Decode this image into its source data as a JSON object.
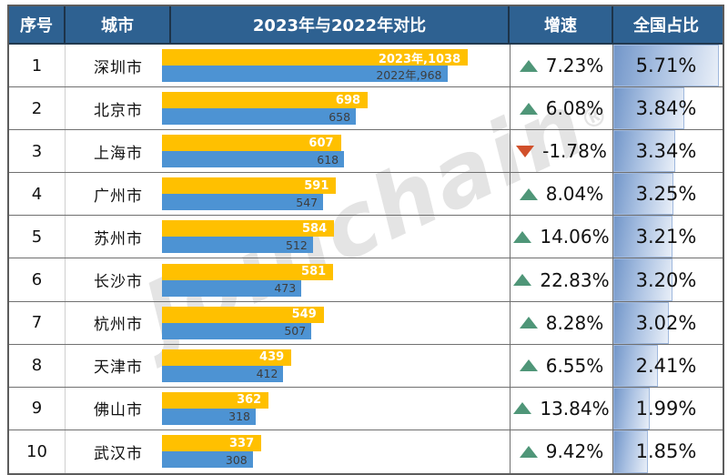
{
  "watermark": {
    "text": "Joinchain",
    "reg": "®"
  },
  "header": {
    "col_index": "序号",
    "col_city": "城市",
    "col_compare": "2023年与2022年对比",
    "col_growth": "增速",
    "col_share": "全国占比"
  },
  "colors": {
    "header_bg": "#2E6191",
    "bar_2023": "#FFC000",
    "bar_2022": "#4D93D3",
    "trend_up": "#4F9678",
    "trend_down": "#D1502B",
    "share_bar_start": "#7296c9",
    "share_bar_end": "#e9eff8"
  },
  "rows": [
    {
      "rank": "1",
      "city": "深圳市",
      "v2023": 1038,
      "v2022": 968,
      "label2023": "2023年,1038",
      "label2022": "2022年,968",
      "growth": "7.23%",
      "trend": "up",
      "share": "5.71%",
      "share_pct": 5.71
    },
    {
      "rank": "2",
      "city": "北京市",
      "v2023": 698,
      "v2022": 658,
      "label2023": "698",
      "label2022": "658",
      "growth": "6.08%",
      "trend": "up",
      "share": "3.84%",
      "share_pct": 3.84
    },
    {
      "rank": "3",
      "city": "上海市",
      "v2023": 607,
      "v2022": 618,
      "label2023": "607",
      "label2022": "618",
      "growth": "-1.78%",
      "trend": "down",
      "share": "3.34%",
      "share_pct": 3.34
    },
    {
      "rank": "4",
      "city": "广州市",
      "v2023": 591,
      "v2022": 547,
      "label2023": "591",
      "label2022": "547",
      "growth": "8.04%",
      "trend": "up",
      "share": "3.25%",
      "share_pct": 3.25
    },
    {
      "rank": "5",
      "city": "苏州市",
      "v2023": 584,
      "v2022": 512,
      "label2023": "584",
      "label2022": "512",
      "growth": "14.06%",
      "trend": "up",
      "share": "3.21%",
      "share_pct": 3.21
    },
    {
      "rank": "6",
      "city": "长沙市",
      "v2023": 581,
      "v2022": 473,
      "label2023": "581",
      "label2022": "473",
      "growth": "22.83%",
      "trend": "up",
      "share": "3.20%",
      "share_pct": 3.2
    },
    {
      "rank": "7",
      "city": "杭州市",
      "v2023": 549,
      "v2022": 507,
      "label2023": "549",
      "label2022": "507",
      "growth": "8.28%",
      "trend": "up",
      "share": "3.02%",
      "share_pct": 3.02
    },
    {
      "rank": "8",
      "city": "天津市",
      "v2023": 439,
      "v2022": 412,
      "label2023": "439",
      "label2022": "412",
      "growth": "6.55%",
      "trend": "up",
      "share": "2.41%",
      "share_pct": 2.41
    },
    {
      "rank": "9",
      "city": "佛山市",
      "v2023": 362,
      "v2022": 318,
      "label2023": "362",
      "label2022": "318",
      "growth": "13.84%",
      "trend": "up",
      "share": "1.99%",
      "share_pct": 1.99
    },
    {
      "rank": "10",
      "city": "武汉市",
      "v2023": 337,
      "v2022": 308,
      "label2023": "337",
      "label2022": "308",
      "growth": "9.42%",
      "trend": "up",
      "share": "1.85%",
      "share_pct": 1.85
    }
  ],
  "chart_data": {
    "type": "bar",
    "orientation": "horizontal",
    "title": "2023年与2022年对比",
    "categories": [
      "深圳市",
      "北京市",
      "上海市",
      "广州市",
      "苏州市",
      "长沙市",
      "杭州市",
      "天津市",
      "佛山市",
      "武汉市"
    ],
    "series": [
      {
        "name": "2023年",
        "color": "#FFC000",
        "values": [
          1038,
          698,
          607,
          591,
          584,
          581,
          549,
          439,
          362,
          337
        ]
      },
      {
        "name": "2022年",
        "color": "#4D93D3",
        "values": [
          968,
          658,
          618,
          547,
          512,
          473,
          507,
          412,
          318,
          308
        ]
      }
    ],
    "growth_pct": [
      7.23,
      6.08,
      -1.78,
      8.04,
      14.06,
      22.83,
      8.28,
      6.55,
      13.84,
      9.42
    ],
    "national_share_pct": [
      5.71,
      3.84,
      3.34,
      3.25,
      3.21,
      3.2,
      3.02,
      2.41,
      1.99,
      1.85
    ],
    "xlim": [
      0,
      1150
    ],
    "grid": false,
    "legend_position": "in-bar-labels"
  }
}
